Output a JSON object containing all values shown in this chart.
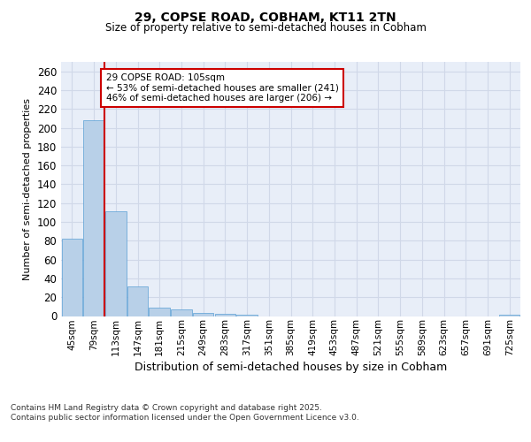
{
  "title1": "29, COPSE ROAD, COBHAM, KT11 2TN",
  "title2": "Size of property relative to semi-detached houses in Cobham",
  "xlabel": "Distribution of semi-detached houses by size in Cobham",
  "ylabel": "Number of semi-detached properties",
  "categories": [
    "45sqm",
    "79sqm",
    "113sqm",
    "147sqm",
    "181sqm",
    "215sqm",
    "249sqm",
    "283sqm",
    "317sqm",
    "351sqm",
    "385sqm",
    "419sqm",
    "453sqm",
    "487sqm",
    "521sqm",
    "555sqm",
    "589sqm",
    "623sqm",
    "657sqm",
    "691sqm",
    "725sqm"
  ],
  "values": [
    82,
    208,
    111,
    31,
    9,
    7,
    3,
    2,
    1,
    0,
    0,
    0,
    0,
    0,
    0,
    0,
    0,
    0,
    0,
    0,
    1
  ],
  "bar_color": "#b8d0e8",
  "bar_edgecolor": "#5a9fd4",
  "annotation_text": "29 COPSE ROAD: 105sqm\n← 53% of semi-detached houses are smaller (241)\n46% of semi-detached houses are larger (206) →",
  "annotation_box_color": "#ffffff",
  "annotation_box_edgecolor": "#cc0000",
  "vline_color": "#cc0000",
  "grid_color": "#d0d8e8",
  "background_color": "#e8eef8",
  "footer_text": "Contains HM Land Registry data © Crown copyright and database right 2025.\nContains public sector information licensed under the Open Government Licence v3.0.",
  "ylim": [
    0,
    270
  ],
  "yticks": [
    0,
    20,
    40,
    60,
    80,
    100,
    120,
    140,
    160,
    180,
    200,
    220,
    240,
    260
  ]
}
